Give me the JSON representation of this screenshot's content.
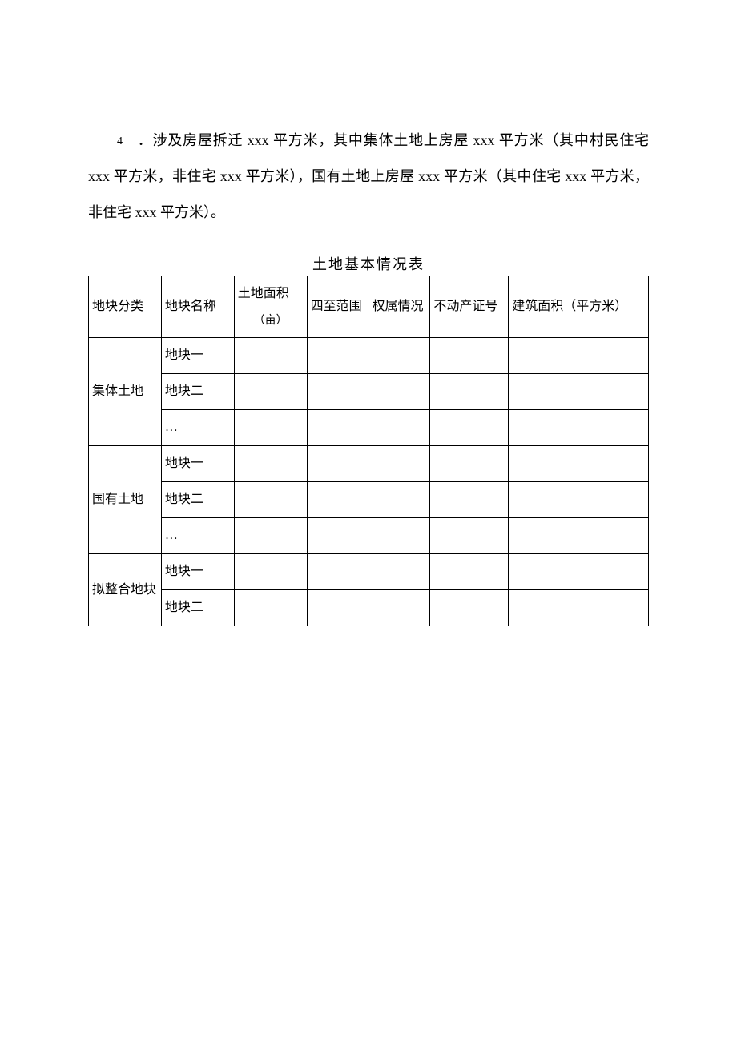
{
  "paragraph": {
    "number": "4",
    "text": "．涉及房屋拆迁 xxx 平方米，其中集体土地上房屋 xxx 平方米（其中村民住宅 xxx 平方米，非住宅 xxx 平方米），国有土地上房屋 xxx 平方米（其中住宅 xxx 平方米，非住宅 xxx 平方米）。"
  },
  "table": {
    "title": "土地基本情况表",
    "headers": {
      "category": "地块分类",
      "name": "地块名称",
      "area_label": "土地面积",
      "area_unit": "（亩）",
      "scope": "四至范围",
      "ownership": "权属情况",
      "cert": "不动产证号",
      "build": "建筑面积（平方米）"
    },
    "groups": [
      {
        "category": "集体土地",
        "rows": [
          {
            "name": "地块一",
            "area": "",
            "scope": "",
            "ownership": "",
            "cert": "",
            "build": ""
          },
          {
            "name": "地块二",
            "area": "",
            "scope": "",
            "ownership": "",
            "cert": "",
            "build": ""
          },
          {
            "name": "…",
            "area": "",
            "scope": "",
            "ownership": "",
            "cert": "",
            "build": ""
          }
        ]
      },
      {
        "category": "国有土地",
        "rows": [
          {
            "name": "地块一",
            "area": "",
            "scope": "",
            "ownership": "",
            "cert": "",
            "build": ""
          },
          {
            "name": "地块二",
            "area": "",
            "scope": "",
            "ownership": "",
            "cert": "",
            "build": ""
          },
          {
            "name": "…",
            "area": "",
            "scope": "",
            "ownership": "",
            "cert": "",
            "build": ""
          }
        ]
      },
      {
        "category": "拟整合地块",
        "rows": [
          {
            "name": "地块一",
            "area": "",
            "scope": "",
            "ownership": "",
            "cert": "",
            "build": ""
          },
          {
            "name": "地块二",
            "area": "",
            "scope": "",
            "ownership": "",
            "cert": "",
            "build": ""
          }
        ]
      }
    ]
  },
  "colors": {
    "text": "#000000",
    "border": "#000000",
    "background": "#ffffff"
  }
}
